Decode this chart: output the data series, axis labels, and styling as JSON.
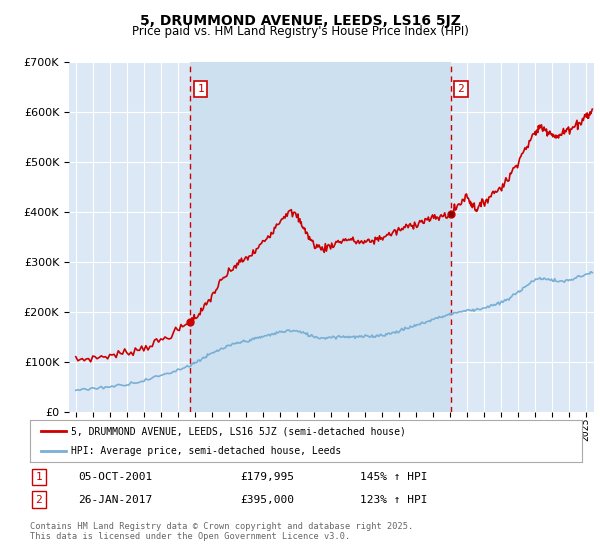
{
  "title": "5, DRUMMOND AVENUE, LEEDS, LS16 5JZ",
  "subtitle": "Price paid vs. HM Land Registry's House Price Index (HPI)",
  "legend_line1": "5, DRUMMOND AVENUE, LEEDS, LS16 5JZ (semi-detached house)",
  "legend_line2": "HPI: Average price, semi-detached house, Leeds",
  "annotation1": {
    "label": "1",
    "date": "05-OCT-2001",
    "price": "£179,995",
    "hpi": "145% ↑ HPI",
    "x_year": 2001.75
  },
  "annotation2": {
    "label": "2",
    "date": "26-JAN-2017",
    "price": "£395,000",
    "hpi": "123% ↑ HPI",
    "x_year": 2017.07
  },
  "footnote": "Contains HM Land Registry data © Crown copyright and database right 2025.\nThis data is licensed under the Open Government Licence v3.0.",
  "red_color": "#cc0000",
  "blue_color": "#7aafd4",
  "bg_color": "#dce8f5",
  "highlight_bg": "#cce0f0",
  "grid_color": "#ffffff",
  "ylim": [
    0,
    700000
  ],
  "xlim": [
    1994.6,
    2025.5
  ],
  "red_dot_y1": 179995,
  "red_dot_y2": 395000
}
